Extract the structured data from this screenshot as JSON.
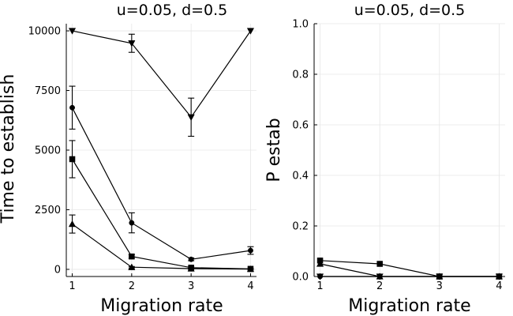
{
  "chart_data": [
    {
      "type": "line",
      "title": "u=0.05, d=0.5",
      "xlabel": "Migration rate",
      "ylabel": "Time to establish",
      "x": [
        1,
        2,
        3,
        4
      ],
      "xticks": [
        "1",
        "2",
        "3",
        "4"
      ],
      "xlim": [
        0.9,
        4.1
      ],
      "ylim": [
        -300,
        10300
      ],
      "yticks": [
        0,
        2500,
        5000,
        7500,
        10000
      ],
      "yticklabels": [
        "0",
        "2500",
        "5000",
        "7500",
        "10000"
      ],
      "grid": true,
      "series": [
        {
          "marker": "triangle-down",
          "values": [
            10000,
            9480,
            6380,
            10000
          ],
          "err": [
            0,
            380,
            800,
            0
          ]
        },
        {
          "marker": "circle",
          "values": [
            6780,
            1950,
            420,
            790
          ],
          "err": [
            900,
            420,
            60,
            160
          ]
        },
        {
          "marker": "square",
          "values": [
            4620,
            540,
            70,
            20
          ],
          "err": [
            780,
            80,
            40,
            10
          ]
        },
        {
          "marker": "triangle-up",
          "values": [
            1900,
            90,
            30,
            10
          ],
          "err": [
            380,
            30,
            15,
            5
          ]
        }
      ]
    },
    {
      "type": "line",
      "title": "u=0.05, d=0.5",
      "xlabel": "Migration rate",
      "ylabel": "P estab",
      "x": [
        1,
        2,
        3,
        4
      ],
      "xticks": [
        "1",
        "2",
        "3",
        "4"
      ],
      "xlim": [
        0.9,
        4.1
      ],
      "ylim": [
        0,
        1
      ],
      "yticks": [
        0,
        0.2,
        0.4,
        0.6,
        0.8,
        1.0
      ],
      "yticklabels": [
        "0.0",
        "0.2",
        "0.4",
        "0.6",
        "0.8",
        "1.0"
      ],
      "grid": true,
      "series": [
        {
          "marker": "square",
          "values": [
            0.063,
            0.05,
            0.0,
            0.0
          ]
        },
        {
          "marker": "triangle-up",
          "values": [
            0.05,
            0.0,
            0.0,
            0.0
          ]
        },
        {
          "marker": "triangle-down",
          "values": [
            0.0,
            0.0,
            0.0,
            0.0
          ]
        },
        {
          "marker": "circle",
          "values": [
            0.0,
            0.0,
            0.0,
            0.0
          ]
        }
      ]
    }
  ]
}
